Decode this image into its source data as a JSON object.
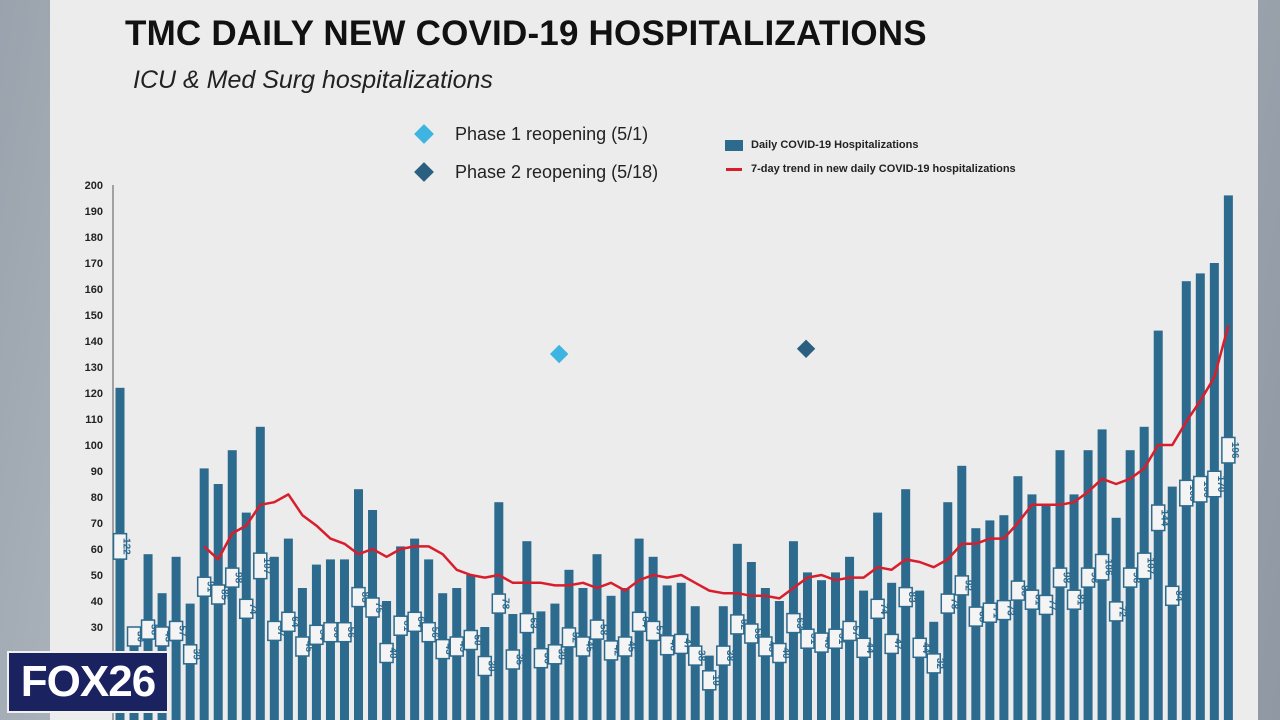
{
  "slide": {
    "title": "TMC DAILY NEW COVID-19 HOSPITALIZATIONS",
    "subtitle": "ICU & Med Surg hospitalizations"
  },
  "phases": [
    {
      "label": "Phase 1 reopening (5/1)",
      "color": "#3db5e0",
      "x_bar_index": 32.3,
      "y": 135
    },
    {
      "label": "Phase 2 reopening (5/18)",
      "color": "#2a5f7f",
      "x_bar_index": 49.9,
      "y": 137
    }
  ],
  "logo": {
    "text": "FOX26"
  },
  "chart_data": {
    "type": "bar",
    "ylim": [
      0,
      200
    ],
    "yticks": [
      30,
      40,
      50,
      60,
      70,
      80,
      90,
      100,
      110,
      120,
      130,
      140,
      150,
      160,
      170,
      180,
      190,
      200
    ],
    "grid": false,
    "legend_position": "top-right",
    "colors": {
      "bars": "#2c6a8e",
      "trend": "#d81e2c"
    },
    "series": [
      {
        "name": "Daily COVID-19 Hospitalizations",
        "type": "bar",
        "values": [
          122,
          30,
          58,
          43,
          57,
          39,
          91,
          85,
          98,
          74,
          107,
          57,
          64,
          45,
          54,
          56,
          56,
          83,
          75,
          40,
          61,
          64,
          56,
          43,
          45,
          50,
          30,
          78,
          35,
          63,
          36,
          39,
          52,
          45,
          58,
          42,
          45,
          64,
          57,
          46,
          47,
          38,
          19,
          38,
          62,
          55,
          45,
          40,
          63,
          51,
          48,
          51,
          57,
          44,
          74,
          47,
          83,
          44,
          32,
          78,
          92,
          68,
          71,
          73,
          88,
          81,
          77,
          98,
          81,
          98,
          106,
          72,
          98,
          107,
          144,
          84,
          163,
          166,
          170,
          196
        ]
      },
      {
        "name": "7-day trend in new daily COVID-19 hospitalizations",
        "type": "line",
        "values": [
          null,
          null,
          null,
          null,
          null,
          null,
          61,
          56,
          66,
          69,
          77,
          78,
          81,
          73,
          69,
          64,
          62,
          58,
          60,
          57,
          60,
          61,
          61,
          58,
          52,
          50,
          49,
          50,
          47,
          47,
          47,
          46,
          46,
          47,
          45,
          47,
          44,
          48,
          50,
          49,
          50,
          47,
          44,
          43,
          43,
          42,
          42,
          41,
          45,
          49,
          50,
          48,
          49,
          49,
          53,
          52,
          56,
          55,
          53,
          56,
          62,
          62,
          64,
          64,
          70,
          77,
          77,
          77,
          78,
          82,
          87,
          85,
          87,
          91,
          100,
          100,
          109,
          117,
          126,
          146
        ]
      }
    ]
  }
}
